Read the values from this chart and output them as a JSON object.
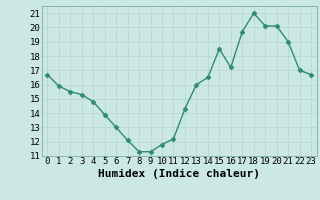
{
  "x": [
    0,
    1,
    2,
    3,
    4,
    5,
    6,
    7,
    8,
    9,
    10,
    11,
    12,
    13,
    14,
    15,
    16,
    17,
    18,
    19,
    20,
    21,
    22,
    23
  ],
  "y": [
    16.7,
    15.9,
    15.5,
    15.3,
    14.8,
    13.9,
    13.0,
    12.1,
    11.3,
    11.3,
    11.8,
    12.2,
    14.3,
    16.0,
    16.5,
    18.5,
    17.2,
    19.7,
    21.0,
    20.1,
    20.1,
    19.0,
    17.0,
    16.7
  ],
  "line_color": "#2e8b72",
  "marker": "D",
  "marker_size": 2.5,
  "linewidth": 1.0,
  "xlabel": "Humidex (Indice chaleur)",
  "xlabel_fontsize": 8,
  "xlim": [
    -0.5,
    23.5
  ],
  "ylim": [
    11,
    21.5
  ],
  "yticks": [
    11,
    12,
    13,
    14,
    15,
    16,
    17,
    18,
    19,
    20,
    21
  ],
  "xticks": [
    0,
    1,
    2,
    3,
    4,
    5,
    6,
    7,
    8,
    9,
    10,
    11,
    12,
    13,
    14,
    15,
    16,
    17,
    18,
    19,
    20,
    21,
    22,
    23
  ],
  "grid_color": "#b8d8d4",
  "background_color": "#cce8e4",
  "tick_fontsize": 6.5,
  "spine_color": "#7aada8"
}
